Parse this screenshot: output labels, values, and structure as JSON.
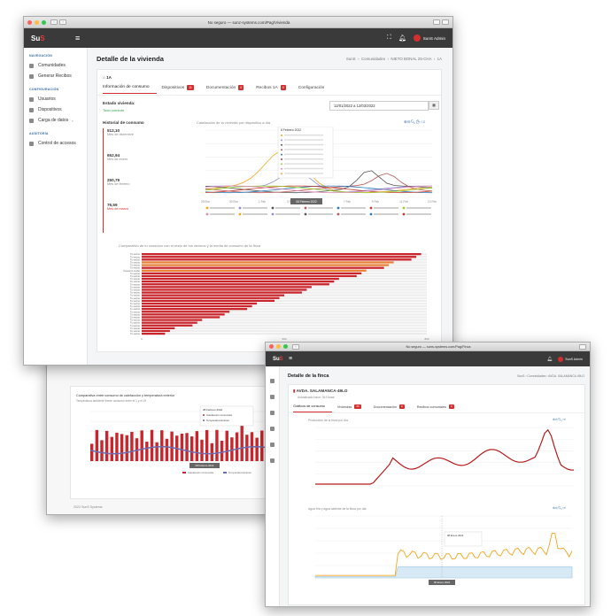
{
  "win1": {
    "url": "No seguro — sunz-systems.com/Pag/Vivienda",
    "user": "SunS Admin",
    "page_title": "Detalle de la vivienda",
    "breadcrumb": [
      "SunS",
      "Comunidades",
      "NIETO BONAL 25-CHA",
      "1A"
    ],
    "sidebar": {
      "sections": [
        {
          "title": "NAVEGACIÓN",
          "items": [
            {
              "label": "Comunidades",
              "icon": "building-icon"
            },
            {
              "label": "Generar Recibos",
              "icon": "receipt-icon"
            }
          ]
        },
        {
          "title": "CONFIGURACIÓN",
          "items": [
            {
              "label": "Usuarios",
              "icon": "users-icon"
            },
            {
              "label": "Dispositivos",
              "icon": "device-icon"
            },
            {
              "label": "Carga de datos",
              "icon": "upload-icon"
            }
          ]
        },
        {
          "title": "AUDITORÍA",
          "items": [
            {
              "label": "Control de accesos",
              "icon": "access-icon"
            }
          ]
        }
      ]
    },
    "dwelling": "1A",
    "tabs": [
      {
        "label": "Información de consumo",
        "badge": ""
      },
      {
        "label": "Dispositivos",
        "badge": "11"
      },
      {
        "label": "Documentación",
        "badge": "0"
      },
      {
        "label": "Recibos 1A",
        "badge": "0"
      },
      {
        "label": "Configuración",
        "badge": ""
      }
    ],
    "estado_label": "Estado vivienda:",
    "estado_value": "Todo correcto",
    "date_range": "12/01/2022 a 12/03/2022",
    "historial_title": "Historial de consumo",
    "historial": [
      {
        "value": "512,10",
        "label": "Mes de diciembre"
      },
      {
        "value": "652,94",
        "label": "Mes de enero"
      },
      {
        "value": "250,79",
        "label": "Mes de febrero"
      },
      {
        "value": "76,59",
        "label": "Mes de marzo"
      }
    ],
    "line_chart_title": "Calefacción de la vivienda por dispositivo a día",
    "bar_chart_title": "Comparativo de tu consumo con el resto de tus vecinos y la media de consumo de la finca",
    "bar_row_label": "Tu vecino",
    "bar_row_label_special": "Consumo medio",
    "tooltip_title": "8 Febrero 2022",
    "tooltip_x": "08 Febrero 2022"
  },
  "win2": {
    "chart_title": "Comparativa entre consumo de calefacción y temperatura exterior",
    "chart_subtitle": "Temperatura ambiente frente consumo entre el 1 y el 19",
    "tooltip_title": "08 Febrero 2022",
    "tooltip_x": "08 Febrero 2022",
    "series": [
      "Calefacción consumida",
      "Temperatura Exterior"
    ],
    "footer": "2022 SunS Systems"
  },
  "win3": {
    "url": "No seguro — suns-systems.com/Pag/Finca",
    "user": "SunS Admin",
    "page_title": "Detalle de la finca",
    "breadcrumb": [
      "SunS",
      "Comunidades",
      "AVDA. SALAMANCA 49LO"
    ],
    "building": "AVDA. SALAMANCA-49LO",
    "updated": "Actualizado hace: 34 Horas",
    "tabs": [
      {
        "label": "Gráficos de consumo",
        "badge": ""
      },
      {
        "label": "Viviendas",
        "badge": "36"
      },
      {
        "label": "Documentación",
        "badge": "0"
      },
      {
        "label": "Recibos comunales",
        "badge": "0"
      }
    ],
    "chart1_title": "Producción de la finca por día",
    "chart2_title": "Agua fría y agua caliente de la finca por día",
    "tooltip_title": "08 Enero 2022",
    "tooltip_x": "08 Enero 2022"
  },
  "colors": {
    "accent": "#d32f2f",
    "dark": "#3a3a3a",
    "orange": "#f2a61c"
  }
}
